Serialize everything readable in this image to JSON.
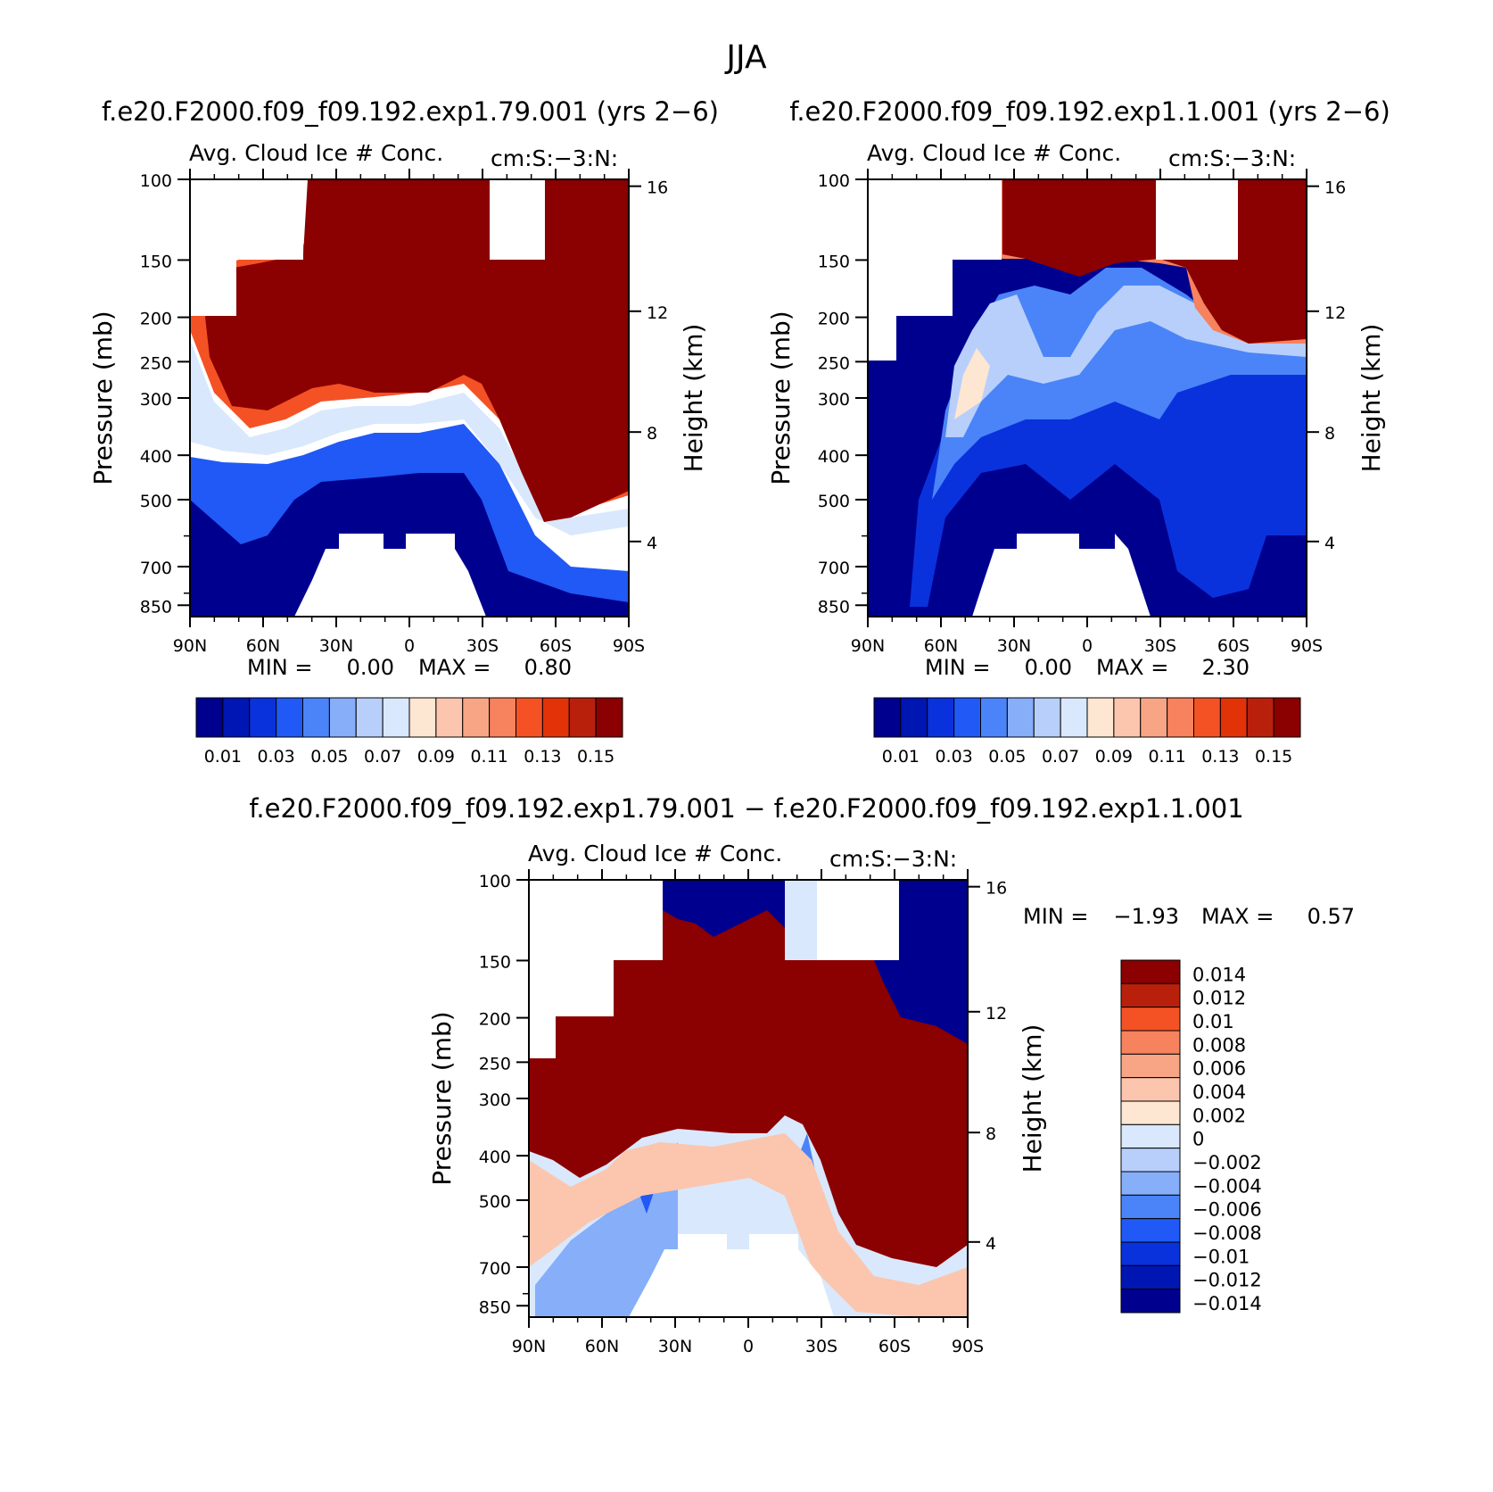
{
  "figure": {
    "title": "JJA"
  },
  "panels": [
    {
      "run_title": "f.e20.F2000.f09_f09.192.exp1.79.001 (yrs 2−6)",
      "variable": "Avg. Cloud Ice # Conc.",
      "units": "cm:S:−3:N:",
      "min_label": "MIN =",
      "min_value": "0.00",
      "max_label": "MAX =",
      "max_value": "0.80"
    },
    {
      "run_title": "f.e20.F2000.f09_f09.192.exp1.1.001 (yrs 2−6)",
      "variable": "Avg. Cloud Ice # Conc.",
      "units": "cm:S:−3:N:",
      "min_label": "MIN =",
      "min_value": "0.00",
      "max_label": "MAX =",
      "max_value": "2.30"
    },
    {
      "run_title": "f.e20.F2000.f09_f09.192.exp1.79.001 − f.e20.F2000.f09_f09.192.exp1.1.001",
      "variable": "Avg. Cloud Ice # Conc.",
      "units": "cm:S:−3:N:",
      "min_label": "MIN =",
      "min_value": "−1.93",
      "max_label": "MAX =",
      "max_value": "0.57"
    }
  ],
  "axes": {
    "y_left_label": "Pressure (mb)",
    "y_right_label": "Height (km)",
    "pressure_ticks": [
      "100",
      "150",
      "200",
      "250",
      "300",
      "400",
      "500",
      "700",
      "850"
    ],
    "height_ticks": [
      "16",
      "12",
      "8",
      "4"
    ],
    "lat_ticks": [
      "90N",
      "60N",
      "30N",
      "0",
      "30S",
      "60S",
      "90S"
    ]
  },
  "colorbars": {
    "absolute": {
      "labels": [
        "0.01",
        "0.03",
        "0.05",
        "0.07",
        "0.09",
        "0.11",
        "0.13",
        "0.15"
      ],
      "colors": [
        "#00008f",
        "#0016b3",
        "#0a32dc",
        "#2059f5",
        "#4a84f8",
        "#86aef9",
        "#b8cffb",
        "#d9e8fc",
        "#fde6d2",
        "#fbc6ad",
        "#f8a585",
        "#f6825e",
        "#f45225",
        "#e13208",
        "#b8200c",
        "#8b0000"
      ]
    },
    "difference": {
      "labels": [
        "0.014",
        "0.012",
        "0.01",
        "0.008",
        "0.006",
        "0.004",
        "0.002",
        "0",
        "−0.002",
        "−0.004",
        "−0.006",
        "−0.008",
        "−0.01",
        "−0.012",
        "−0.014"
      ],
      "colors": [
        "#8b0000",
        "#b8200c",
        "#f45225",
        "#f6825e",
        "#f8a585",
        "#fbc6ad",
        "#fde6d2",
        "#d9e8fc",
        "#b8cffb",
        "#86aef9",
        "#4a84f8",
        "#2059f5",
        "#0a32dc",
        "#0016b3",
        "#00008f"
      ]
    }
  },
  "chart_data": [
    {
      "type": "heatmap",
      "title": "f.e20.F2000.f09_f09.192.exp1.79.001 (yrs 2−6)",
      "xlabel": "",
      "ylabel": "Pressure (mb)",
      "y2label": "Height (km)",
      "x_ticks": [
        "90N",
        "60N",
        "30N",
        "0",
        "30S",
        "60S",
        "90S"
      ],
      "xlim": [
        90,
        -90
      ],
      "ylim": [
        900,
        100
      ],
      "y_scale": "log",
      "min": 0.0,
      "max": 0.8,
      "contour_levels": [
        0.01,
        0.02,
        0.03,
        0.04,
        0.05,
        0.06,
        0.07,
        0.08,
        0.09,
        0.1,
        0.11,
        0.12,
        0.13,
        0.14,
        0.15
      ],
      "level_015_top_mb": [
        [
          90,
          165
        ],
        [
          80,
          245
        ],
        [
          75,
          295
        ],
        [
          70,
          310
        ],
        [
          60,
          340
        ],
        [
          50,
          330
        ],
        [
          40,
          305
        ],
        [
          30,
          290
        ],
        [
          25,
          285
        ],
        [
          20,
          300
        ],
        [
          10,
          300
        ],
        [
          0,
          300
        ],
        [
          -10,
          300
        ],
        [
          -20,
          290
        ],
        [
          -25,
          285
        ],
        [
          -30,
          330
        ],
        [
          -40,
          410
        ],
        [
          -50,
          490
        ],
        [
          -60,
          560
        ],
        [
          -70,
          570
        ],
        [
          -80,
          555
        ],
        [
          -90,
          520
        ]
      ]
    },
    {
      "type": "heatmap",
      "title": "f.e20.F2000.f09_f09.192.exp1.1.001 (yrs 2−6)",
      "xlabel": "",
      "ylabel": "Pressure (mb)",
      "y2label": "Height (km)",
      "x_ticks": [
        "90N",
        "60N",
        "30N",
        "0",
        "30S",
        "60S",
        "90S"
      ],
      "xlim": [
        90,
        -90
      ],
      "ylim": [
        900,
        100
      ],
      "y_scale": "log",
      "min": 0.0,
      "max": 2.3,
      "contour_levels": [
        0.01,
        0.02,
        0.03,
        0.04,
        0.05,
        0.06,
        0.07,
        0.08,
        0.09,
        0.1,
        0.11,
        0.12,
        0.13,
        0.14,
        0.15
      ],
      "level_015_top_mb": [
        [
          35,
          150
        ],
        [
          25,
          175
        ],
        [
          10,
          165
        ],
        [
          0,
          160
        ],
        [
          -20,
          170
        ],
        [
          -35,
          200
        ],
        [
          -50,
          240
        ],
        [
          -70,
          260
        ],
        [
          -90,
          255
        ]
      ]
    },
    {
      "type": "heatmap",
      "title": "f.e20.F2000.f09_f09.192.exp1.79.001 − f.e20.F2000.f09_f09.192.exp1.1.001",
      "xlabel": "",
      "ylabel": "Pressure (mb)",
      "y2label": "Height (km)",
      "x_ticks": [
        "90N",
        "60N",
        "30N",
        "0",
        "30S",
        "60S",
        "90S"
      ],
      "xlim": [
        90,
        -90
      ],
      "ylim": [
        900,
        100
      ],
      "y_scale": "log",
      "min": -1.93,
      "max": 0.57,
      "contour_levels": [
        -0.014,
        -0.012,
        -0.01,
        -0.008,
        -0.006,
        -0.004,
        -0.002,
        0,
        0.002,
        0.004,
        0.006,
        0.008,
        0.01,
        0.012,
        0.014
      ],
      "positive_region_bottom_mb": [
        [
          90,
          400
        ],
        [
          70,
          450
        ],
        [
          60,
          460
        ],
        [
          45,
          390
        ],
        [
          35,
          360
        ],
        [
          25,
          380
        ],
        [
          10,
          400
        ],
        [
          0,
          395
        ],
        [
          -20,
          380
        ],
        [
          -30,
          410
        ],
        [
          -40,
          500
        ],
        [
          -50,
          600
        ],
        [
          -60,
          630
        ],
        [
          -70,
          640
        ],
        [
          -80,
          640
        ],
        [
          -90,
          650
        ]
      ]
    }
  ]
}
